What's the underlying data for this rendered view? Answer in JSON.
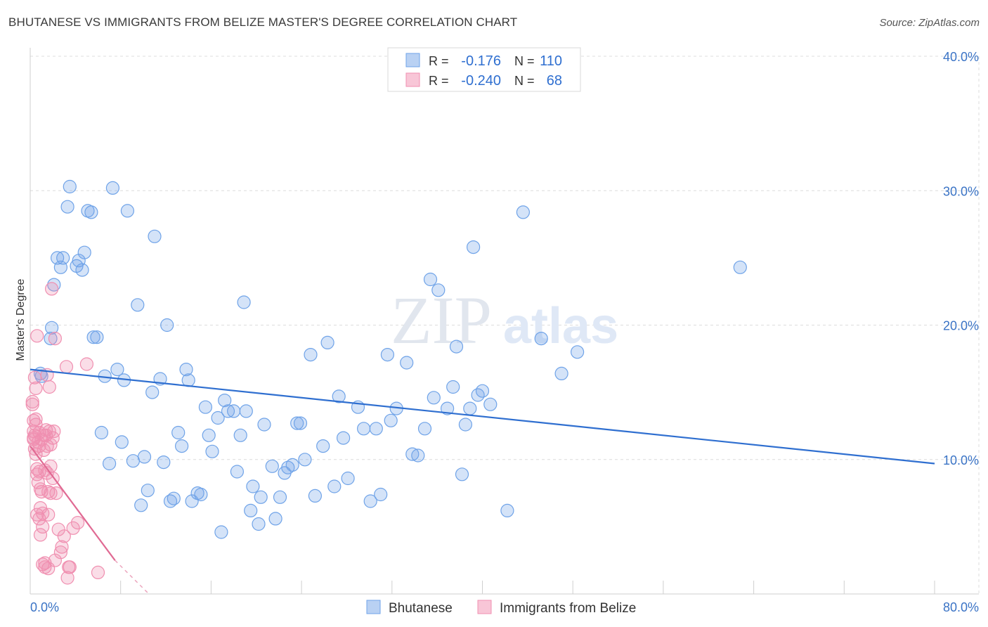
{
  "title": "BHUTANESE VS IMMIGRANTS FROM BELIZE MASTER'S DEGREE CORRELATION CHART",
  "source": "Source: ZipAtlas.com",
  "watermark": {
    "zip": "ZIP",
    "atlas": "atlas"
  },
  "legend_box": {
    "rows": [
      {
        "r_label": "R =",
        "r_value": "-0.176",
        "n_label": "N =",
        "n_value": "110"
      },
      {
        "r_label": "R =",
        "r_value": "-0.240",
        "n_label": "N =",
        "n_value": "68"
      }
    ]
  },
  "chart_data": {
    "type": "scatter",
    "title": "BHUTANESE VS IMMIGRANTS FROM BELIZE MASTER'S DEGREE CORRELATION CHART",
    "xlabel": "",
    "ylabel": "Master's Degree",
    "xlim": [
      0,
      80
    ],
    "ylim": [
      0,
      40.0
    ],
    "x_tick_labels": [
      "0.0%",
      "80.0%"
    ],
    "y_ticks": [
      10,
      20,
      30,
      40
    ],
    "y_tick_labels": [
      "10.0%",
      "20.0%",
      "30.0%",
      "40.0%"
    ],
    "grid": true,
    "legend_position": "bottom-center",
    "series": [
      {
        "name": "Bhutanese",
        "color": "#6fa3e8",
        "line_color": "#2f6fd0",
        "trend": {
          "x": [
            0,
            80
          ],
          "y": [
            16.7,
            9.7
          ]
        },
        "points": [
          [
            0.9,
            16.4
          ],
          [
            1.0,
            16.2
          ],
          [
            1.8,
            19.0
          ],
          [
            1.9,
            19.8
          ],
          [
            2.1,
            23.0
          ],
          [
            2.4,
            25.0
          ],
          [
            2.7,
            24.3
          ],
          [
            2.9,
            25.0
          ],
          [
            3.3,
            28.8
          ],
          [
            3.5,
            30.3
          ],
          [
            4.1,
            24.4
          ],
          [
            4.3,
            24.8
          ],
          [
            4.6,
            24.1
          ],
          [
            4.8,
            25.4
          ],
          [
            5.1,
            28.5
          ],
          [
            5.4,
            28.4
          ],
          [
            5.6,
            19.1
          ],
          [
            5.9,
            19.1
          ],
          [
            6.3,
            12.0
          ],
          [
            6.6,
            16.2
          ],
          [
            7.0,
            9.7
          ],
          [
            7.3,
            30.2
          ],
          [
            7.7,
            16.7
          ],
          [
            8.1,
            11.3
          ],
          [
            8.3,
            15.9
          ],
          [
            8.6,
            28.5
          ],
          [
            9.1,
            9.9
          ],
          [
            9.5,
            21.5
          ],
          [
            9.8,
            6.6
          ],
          [
            10.1,
            10.2
          ],
          [
            10.4,
            7.7
          ],
          [
            10.8,
            15.0
          ],
          [
            11.0,
            26.6
          ],
          [
            11.5,
            16.0
          ],
          [
            11.8,
            9.8
          ],
          [
            12.1,
            20.0
          ],
          [
            12.4,
            6.9
          ],
          [
            12.7,
            7.1
          ],
          [
            13.1,
            12.0
          ],
          [
            13.4,
            11.0
          ],
          [
            13.8,
            16.7
          ],
          [
            14.0,
            15.9
          ],
          [
            14.3,
            6.9
          ],
          [
            14.8,
            7.5
          ],
          [
            15.1,
            7.4
          ],
          [
            15.5,
            13.9
          ],
          [
            15.8,
            11.8
          ],
          [
            16.1,
            10.6
          ],
          [
            16.6,
            13.1
          ],
          [
            16.9,
            4.6
          ],
          [
            17.2,
            14.4
          ],
          [
            17.5,
            13.6
          ],
          [
            18.0,
            13.6
          ],
          [
            18.3,
            9.1
          ],
          [
            18.6,
            11.8
          ],
          [
            18.9,
            21.7
          ],
          [
            19.1,
            13.6
          ],
          [
            19.5,
            6.2
          ],
          [
            19.7,
            8.0
          ],
          [
            20.2,
            5.2
          ],
          [
            20.4,
            7.2
          ],
          [
            20.7,
            12.6
          ],
          [
            21.4,
            9.5
          ],
          [
            21.7,
            5.6
          ],
          [
            22.1,
            7.2
          ],
          [
            22.5,
            9.0
          ],
          [
            22.8,
            9.4
          ],
          [
            23.2,
            9.6
          ],
          [
            23.6,
            12.7
          ],
          [
            23.9,
            12.7
          ],
          [
            24.3,
            10.0
          ],
          [
            24.8,
            17.8
          ],
          [
            25.2,
            7.3
          ],
          [
            25.9,
            11.0
          ],
          [
            26.3,
            18.7
          ],
          [
            26.9,
            8.0
          ],
          [
            27.3,
            14.7
          ],
          [
            27.7,
            11.6
          ],
          [
            28.1,
            8.6
          ],
          [
            29.0,
            13.9
          ],
          [
            29.5,
            12.3
          ],
          [
            30.1,
            6.9
          ],
          [
            30.6,
            12.3
          ],
          [
            31.0,
            7.4
          ],
          [
            31.6,
            17.8
          ],
          [
            31.9,
            12.9
          ],
          [
            32.4,
            13.8
          ],
          [
            33.3,
            17.2
          ],
          [
            33.8,
            10.4
          ],
          [
            34.3,
            10.3
          ],
          [
            34.9,
            12.3
          ],
          [
            35.4,
            23.4
          ],
          [
            35.7,
            14.6
          ],
          [
            36.1,
            22.6
          ],
          [
            36.9,
            13.8
          ],
          [
            37.4,
            15.4
          ],
          [
            37.7,
            18.4
          ],
          [
            38.2,
            8.9
          ],
          [
            38.5,
            12.6
          ],
          [
            38.9,
            13.8
          ],
          [
            39.2,
            25.8
          ],
          [
            39.6,
            14.8
          ],
          [
            40.0,
            15.1
          ],
          [
            40.7,
            14.1
          ],
          [
            42.2,
            6.2
          ],
          [
            43.6,
            28.4
          ],
          [
            45.2,
            19.0
          ],
          [
            47.0,
            16.4
          ],
          [
            48.4,
            18.0
          ],
          [
            62.8,
            24.3
          ]
        ]
      },
      {
        "name": "Immigrants from Belize",
        "color": "#f08fb0",
        "line_color": "#e06a93",
        "trend": {
          "x": [
            0,
            7.5
          ],
          "y": [
            11.0,
            2.5
          ],
          "dash_to": {
            "x": 10.5,
            "y": 0.0
          }
        },
        "points": [
          [
            0.2,
            14.3
          ],
          [
            0.2,
            14.1
          ],
          [
            0.3,
            12.9
          ],
          [
            0.3,
            12.1
          ],
          [
            0.3,
            11.6
          ],
          [
            0.3,
            11.5
          ],
          [
            0.4,
            10.8
          ],
          [
            0.4,
            11.8
          ],
          [
            0.4,
            16.1
          ],
          [
            0.5,
            15.3
          ],
          [
            0.5,
            12.6
          ],
          [
            0.5,
            13.0
          ],
          [
            0.5,
            10.4
          ],
          [
            0.6,
            8.9
          ],
          [
            0.6,
            9.3
          ],
          [
            0.6,
            5.9
          ],
          [
            0.6,
            19.2
          ],
          [
            0.7,
            11.3
          ],
          [
            0.7,
            8.3
          ],
          [
            0.8,
            11.0
          ],
          [
            0.8,
            9.1
          ],
          [
            0.8,
            12.0
          ],
          [
            0.8,
            5.6
          ],
          [
            0.9,
            7.8
          ],
          [
            0.9,
            6.4
          ],
          [
            0.9,
            4.4
          ],
          [
            1.0,
            11.5
          ],
          [
            1.0,
            7.6
          ],
          [
            1.1,
            6.0
          ],
          [
            1.1,
            5.0
          ],
          [
            1.1,
            2.2
          ],
          [
            1.2,
            11.8
          ],
          [
            1.2,
            10.7
          ],
          [
            1.3,
            9.2
          ],
          [
            1.3,
            2.3
          ],
          [
            1.3,
            2.0
          ],
          [
            1.4,
            12.2
          ],
          [
            1.4,
            11.8
          ],
          [
            1.5,
            16.3
          ],
          [
            1.5,
            11.0
          ],
          [
            1.5,
            9.0
          ],
          [
            1.6,
            7.6
          ],
          [
            1.6,
            5.9
          ],
          [
            1.6,
            1.9
          ],
          [
            1.7,
            15.4
          ],
          [
            1.7,
            12.1
          ],
          [
            1.8,
            11.1
          ],
          [
            1.8,
            9.5
          ],
          [
            1.8,
            7.5
          ],
          [
            1.9,
            22.7
          ],
          [
            2.0,
            11.6
          ],
          [
            2.0,
            8.6
          ],
          [
            2.1,
            12.1
          ],
          [
            2.2,
            19.0
          ],
          [
            2.2,
            2.5
          ],
          [
            2.3,
            7.5
          ],
          [
            2.5,
            4.8
          ],
          [
            2.7,
            3.1
          ],
          [
            2.8,
            3.5
          ],
          [
            3.0,
            4.3
          ],
          [
            3.2,
            16.9
          ],
          [
            3.3,
            1.2
          ],
          [
            3.4,
            2.0
          ],
          [
            3.5,
            2.0
          ],
          [
            3.8,
            4.9
          ],
          [
            4.2,
            5.3
          ],
          [
            5.0,
            17.1
          ],
          [
            6.0,
            1.6
          ]
        ]
      }
    ]
  }
}
